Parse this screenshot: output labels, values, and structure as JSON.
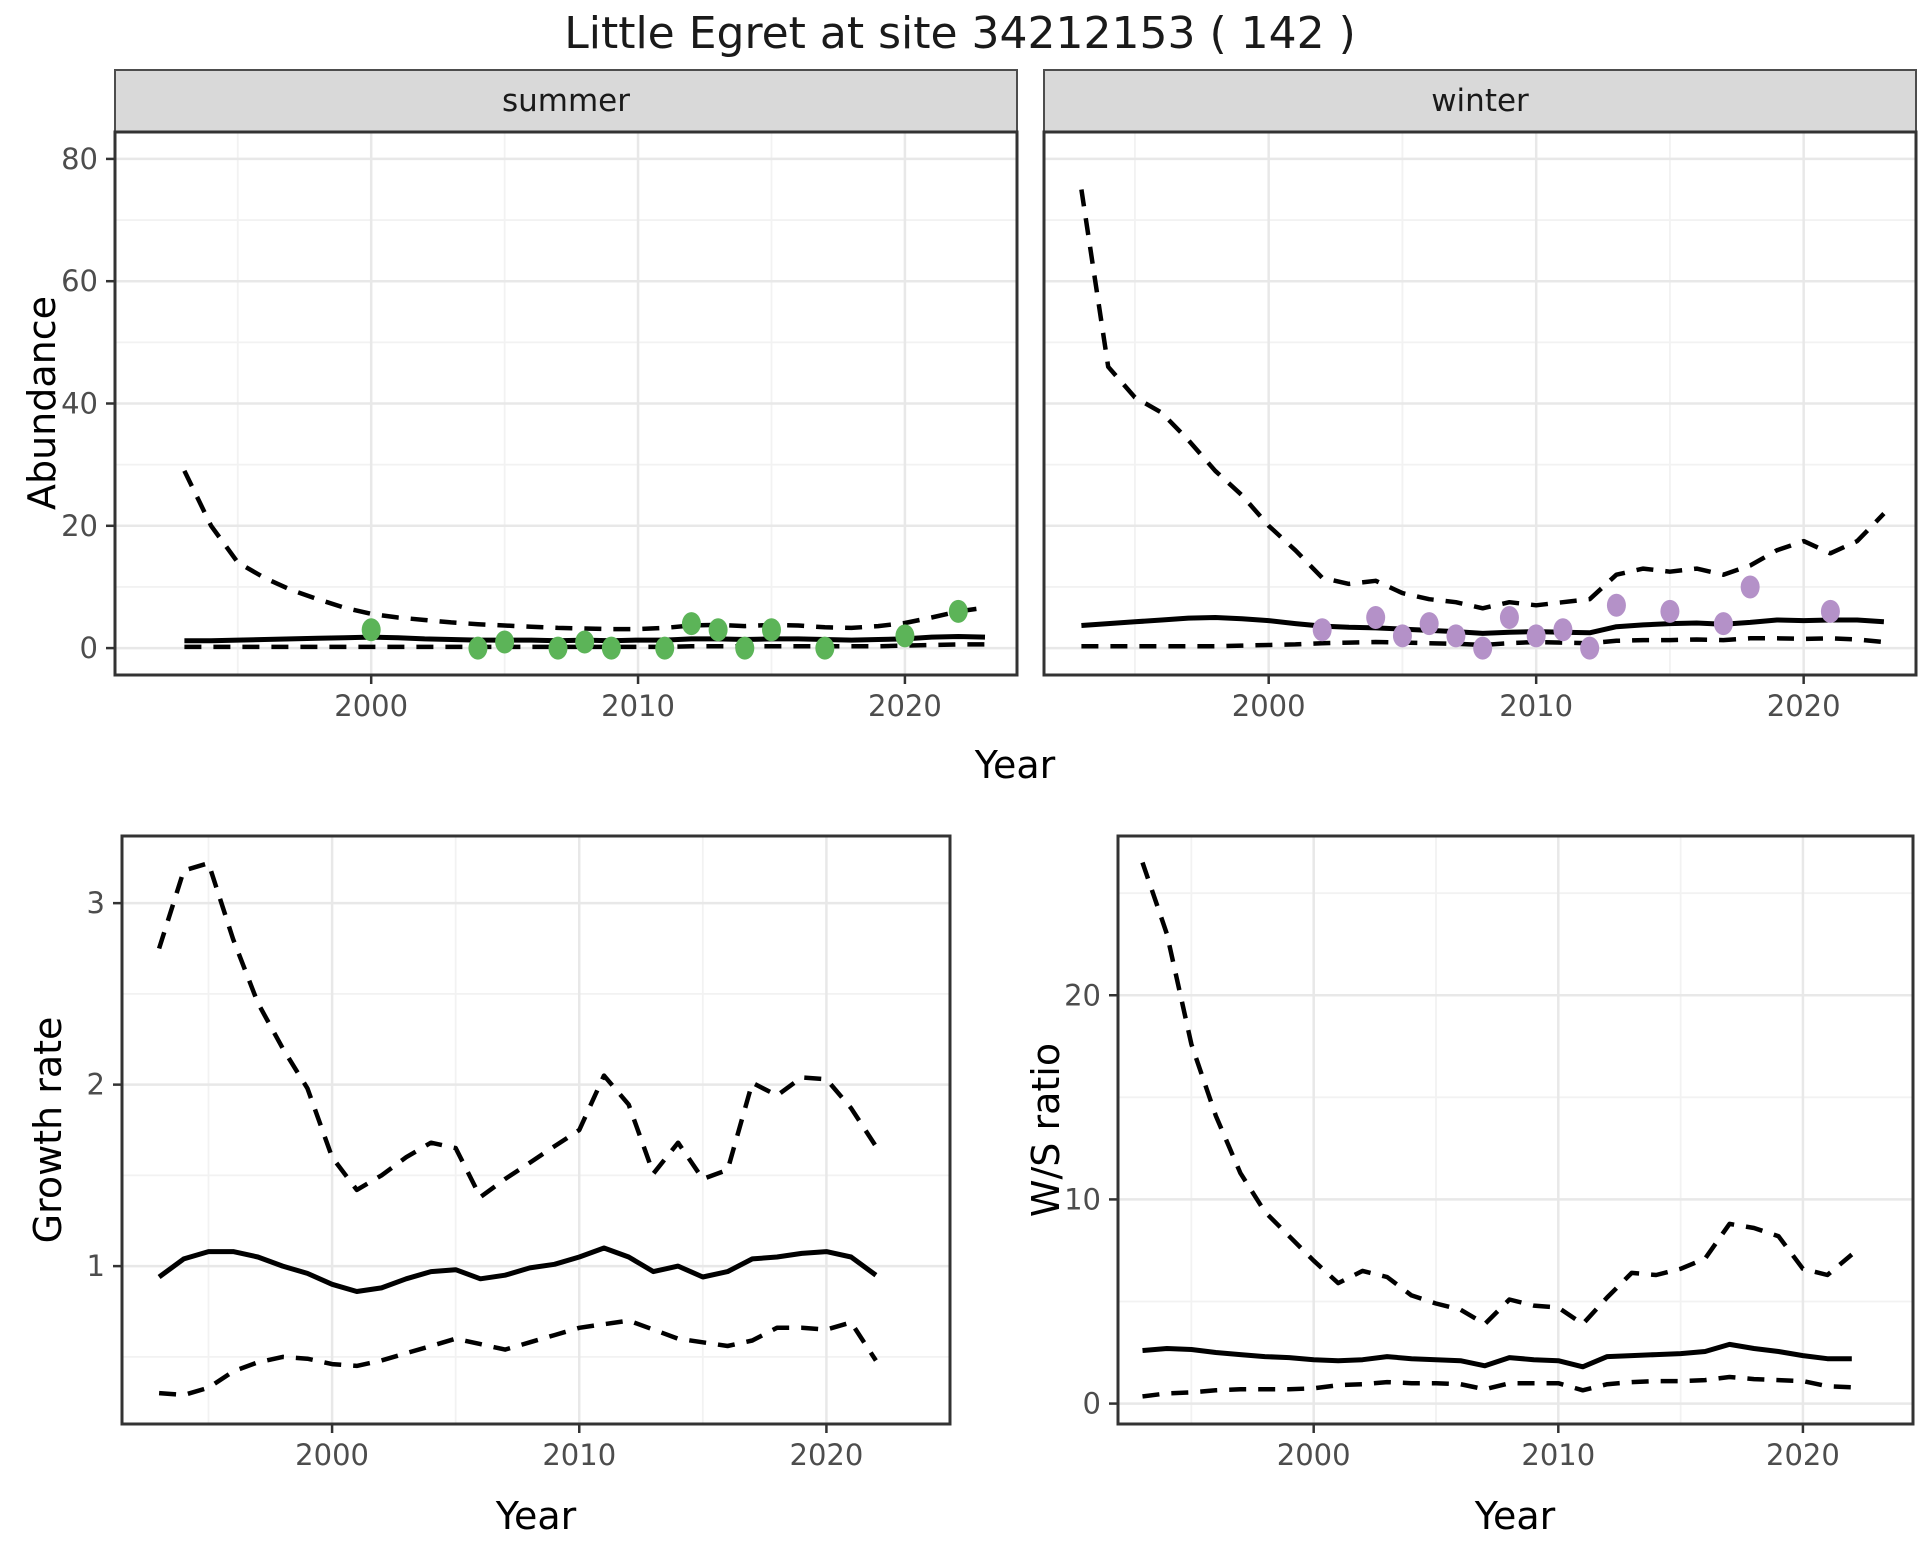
{
  "title": "Little Egret at site 34212153 ( 142 )",
  "labels": {
    "facet_summer": "summer",
    "facet_winter": "winter",
    "abundance_ylabel": "Abundance",
    "top_xlabel": "Year",
    "growth_ylabel": "Growth rate",
    "growth_xlabel": "Year",
    "ws_ylabel": "W/S ratio",
    "ws_xlabel": "Year"
  },
  "colors": {
    "summer_point": "#5CB458",
    "winter_point": "#B491C8",
    "line": "#000000",
    "strip_bg": "#D9D9D9",
    "strip_border": "#4D4D4D",
    "panel_border": "#333333",
    "grid_major": "#E8E8E8",
    "grid_minor": "#F2F2F2",
    "tick_text": "#4D4D4D",
    "tick_mark": "#333333",
    "panel_bg": "#FFFFFF"
  },
  "chart_data": [
    {
      "id": "abundance_summer",
      "type": "line",
      "facet": "summer",
      "ylabel": "Abundance",
      "xlabel": "Year",
      "xdomain": [
        1990.4,
        2024.2
      ],
      "ydomain": [
        -4.4,
        84.4
      ],
      "xticks": [
        2000,
        2010,
        2020
      ],
      "xminor": [
        1995,
        2005,
        2015
      ],
      "yticks": [
        0,
        20,
        40,
        60,
        80
      ],
      "yminor": [
        10,
        30,
        50,
        70
      ],
      "x": [
        1993,
        1994,
        1995,
        1996,
        1997,
        1998,
        1999,
        2000,
        2001,
        2002,
        2003,
        2004,
        2005,
        2006,
        2007,
        2008,
        2009,
        2010,
        2011,
        2012,
        2013,
        2014,
        2015,
        2016,
        2017,
        2018,
        2019,
        2020,
        2021,
        2022,
        2023
      ],
      "series": [
        {
          "name": "upper_95ci",
          "style": "dashed",
          "y": [
            29,
            20,
            14,
            11.5,
            9.5,
            8,
            6.6,
            5.6,
            5,
            4.6,
            4.2,
            3.9,
            3.7,
            3.5,
            3.3,
            3.2,
            3.1,
            3.1,
            3.3,
            3.7,
            3.8,
            3.6,
            3.8,
            3.7,
            3.4,
            3.3,
            3.6,
            4.1,
            5,
            6,
            6.6
          ]
        },
        {
          "name": "median",
          "style": "solid",
          "y": [
            1.2,
            1.2,
            1.3,
            1.4,
            1.5,
            1.6,
            1.7,
            1.8,
            1.7,
            1.5,
            1.4,
            1.3,
            1.3,
            1.3,
            1.2,
            1.3,
            1.2,
            1.3,
            1.3,
            1.5,
            1.5,
            1.4,
            1.5,
            1.5,
            1.4,
            1.3,
            1.4,
            1.5,
            1.8,
            1.9,
            1.8
          ]
        },
        {
          "name": "lower_95ci",
          "style": "dashed",
          "y": [
            0.2,
            0.2,
            0.2,
            0.2,
            0.2,
            0.2,
            0.2,
            0.2,
            0.2,
            0.2,
            0.2,
            0.2,
            0.2,
            0.2,
            0.2,
            0.2,
            0.2,
            0.2,
            0.2,
            0.3,
            0.3,
            0.3,
            0.3,
            0.3,
            0.3,
            0.3,
            0.3,
            0.4,
            0.5,
            0.6,
            0.6
          ]
        }
      ],
      "points": {
        "name": "observed_counts",
        "color": "#5CB458",
        "x": [
          2000,
          2004,
          2005,
          2007,
          2008,
          2009,
          2011,
          2012,
          2013,
          2014,
          2015,
          2017,
          2020,
          2022
        ],
        "y": [
          3,
          0,
          1,
          0,
          1,
          0,
          0,
          4,
          3,
          0,
          3,
          0,
          2,
          6
        ]
      }
    },
    {
      "id": "abundance_winter",
      "type": "line",
      "facet": "winter",
      "ylabel": "Abundance",
      "xlabel": "Year",
      "xdomain": [
        1991.6,
        2024.2
      ],
      "ydomain": [
        -4.4,
        84.4
      ],
      "xticks": [
        2000,
        2010,
        2020
      ],
      "xminor": [
        1995,
        2005,
        2015
      ],
      "yticks": [
        0,
        20,
        40,
        60,
        80
      ],
      "yminor": [
        10,
        30,
        50,
        70
      ],
      "x": [
        1993,
        1994,
        1995,
        1996,
        1997,
        1998,
        1999,
        2000,
        2001,
        2002,
        2003,
        2004,
        2005,
        2006,
        2007,
        2008,
        2009,
        2010,
        2011,
        2012,
        2013,
        2014,
        2015,
        2016,
        2017,
        2018,
        2019,
        2020,
        2021,
        2022,
        2023
      ],
      "series": [
        {
          "name": "upper_95ci",
          "style": "dashed",
          "y": [
            75,
            46,
            41,
            38.5,
            34,
            29,
            25,
            20,
            16,
            11.5,
            10.5,
            11,
            9,
            8,
            7.5,
            6.5,
            7.5,
            7,
            7.5,
            8,
            12,
            13,
            12.5,
            13,
            12,
            13.5,
            16,
            17.5,
            15.5,
            17.5,
            22
          ]
        },
        {
          "name": "median",
          "style": "solid",
          "y": [
            3.7,
            4,
            4.3,
            4.6,
            4.9,
            5,
            4.8,
            4.5,
            4,
            3.6,
            3.4,
            3.3,
            3.1,
            2.9,
            2.7,
            2.4,
            2.6,
            2.7,
            2.6,
            2.5,
            3.5,
            3.8,
            4,
            4.1,
            3.9,
            4.2,
            4.6,
            4.5,
            4.6,
            4.6,
            4.3
          ]
        },
        {
          "name": "lower_95ci",
          "style": "dashed",
          "y": [
            0.3,
            0.3,
            0.3,
            0.3,
            0.3,
            0.3,
            0.4,
            0.5,
            0.6,
            0.8,
            0.9,
            1,
            0.9,
            0.8,
            0.7,
            0.5,
            0.8,
            1,
            0.9,
            0.8,
            1.2,
            1.3,
            1.3,
            1.4,
            1.3,
            1.6,
            1.6,
            1.5,
            1.6,
            1.4,
            1
          ]
        }
      ],
      "points": {
        "name": "observed_counts",
        "color": "#B491C8",
        "x": [
          2002,
          2004,
          2005,
          2006,
          2007,
          2008,
          2009,
          2010,
          2011,
          2012,
          2013,
          2015,
          2017,
          2018,
          2021
        ],
        "y": [
          3,
          5,
          2,
          4,
          2,
          0,
          5,
          2,
          3,
          0,
          7,
          6,
          4,
          10,
          6
        ]
      }
    },
    {
      "id": "growth_rate",
      "type": "line",
      "facet": null,
      "ylabel": "Growth rate",
      "xlabel": "Year",
      "xdomain": [
        1991.5,
        2025
      ],
      "ydomain": [
        0.13,
        3.37
      ],
      "xticks": [
        2000,
        2010,
        2020
      ],
      "xminor": [
        1995,
        2005,
        2015
      ],
      "yticks": [
        1,
        2,
        3
      ],
      "yminor": [
        0.5,
        1.5,
        2.5
      ],
      "x": [
        1993,
        1994,
        1995,
        1996,
        1997,
        1998,
        1999,
        2000,
        2001,
        2002,
        2003,
        2004,
        2005,
        2006,
        2007,
        2008,
        2009,
        2010,
        2011,
        2012,
        2013,
        2014,
        2015,
        2016,
        2017,
        2018,
        2019,
        2020,
        2021,
        2022
      ],
      "series": [
        {
          "name": "upper_95ci",
          "style": "dashed",
          "y": [
            2.75,
            3.18,
            3.22,
            2.8,
            2.45,
            2.2,
            1.98,
            1.6,
            1.42,
            1.5,
            1.6,
            1.68,
            1.65,
            1.38,
            1.48,
            1.57,
            1.66,
            1.75,
            2.05,
            1.89,
            1.51,
            1.68,
            1.48,
            1.53,
            2.01,
            1.94,
            2.04,
            2.03,
            1.87,
            1.66
          ]
        },
        {
          "name": "median",
          "style": "solid",
          "y": [
            0.94,
            1.04,
            1.08,
            1.08,
            1.05,
            1.0,
            0.96,
            0.9,
            0.86,
            0.88,
            0.93,
            0.97,
            0.98,
            0.93,
            0.95,
            0.99,
            1.01,
            1.05,
            1.1,
            1.05,
            0.97,
            1.0,
            0.94,
            0.97,
            1.04,
            1.05,
            1.07,
            1.08,
            1.05,
            0.95
          ]
        },
        {
          "name": "lower_95ci",
          "style": "dashed",
          "y": [
            0.3,
            0.29,
            0.33,
            0.42,
            0.47,
            0.5,
            0.49,
            0.46,
            0.45,
            0.48,
            0.52,
            0.56,
            0.6,
            0.57,
            0.54,
            0.58,
            0.62,
            0.66,
            0.68,
            0.7,
            0.65,
            0.6,
            0.58,
            0.56,
            0.59,
            0.66,
            0.66,
            0.65,
            0.69,
            0.48
          ]
        }
      ],
      "points": null
    },
    {
      "id": "ws_ratio",
      "type": "line",
      "facet": null,
      "ylabel": "W/S ratio",
      "xlabel": "Year",
      "xdomain": [
        1992,
        2024.5
      ],
      "ydomain": [
        -1.0,
        27.8
      ],
      "xticks": [
        2000,
        2010,
        2020
      ],
      "xminor": [
        1995,
        2005,
        2015
      ],
      "yticks": [
        0,
        10,
        20
      ],
      "yminor": [
        5,
        15,
        25
      ],
      "x": [
        1993,
        1994,
        1995,
        1996,
        1997,
        1998,
        1999,
        2000,
        2001,
        2002,
        2003,
        2004,
        2005,
        2006,
        2007,
        2008,
        2009,
        2010,
        2011,
        2012,
        2013,
        2014,
        2015,
        2016,
        2017,
        2018,
        2019,
        2020,
        2021,
        2022
      ],
      "series": [
        {
          "name": "upper_95ci",
          "style": "dashed",
          "y": [
            26.5,
            23,
            17.6,
            14.1,
            11.3,
            9.4,
            8.2,
            7,
            5.9,
            6.5,
            6.2,
            5.3,
            4.9,
            4.6,
            3.9,
            5.1,
            4.8,
            4.7,
            3.9,
            5.2,
            6.4,
            6.3,
            6.6,
            7.1,
            8.8,
            8.6,
            8.2,
            6.6,
            6.3,
            7.3
          ]
        },
        {
          "name": "median",
          "style": "solid",
          "y": [
            2.6,
            2.7,
            2.65,
            2.5,
            2.4,
            2.3,
            2.25,
            2.15,
            2.1,
            2.15,
            2.3,
            2.2,
            2.15,
            2.1,
            1.85,
            2.25,
            2.15,
            2.1,
            1.8,
            2.3,
            2.35,
            2.4,
            2.45,
            2.55,
            2.9,
            2.7,
            2.55,
            2.35,
            2.2,
            2.2
          ]
        },
        {
          "name": "lower_95ci",
          "style": "dashed",
          "y": [
            0.35,
            0.5,
            0.55,
            0.65,
            0.7,
            0.7,
            0.7,
            0.75,
            0.9,
            0.95,
            1.05,
            1,
            1,
            0.95,
            0.7,
            1,
            1,
            1,
            0.65,
            0.95,
            1.05,
            1.1,
            1.1,
            1.15,
            1.3,
            1.2,
            1.15,
            1.1,
            0.85,
            0.8
          ]
        }
      ],
      "points": null
    }
  ]
}
